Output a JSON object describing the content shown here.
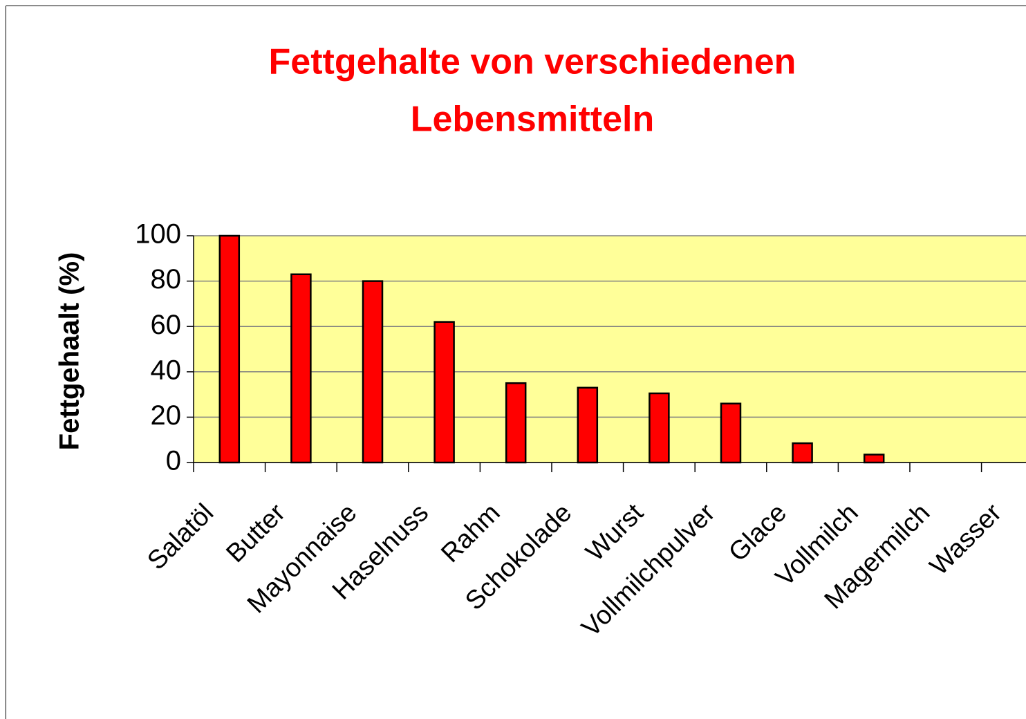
{
  "chart_data": {
    "type": "bar",
    "title": [
      "Fettgehalte von verschiedenen",
      "Lebensmitteln"
    ],
    "y_label": "Fettgehaalt (%)",
    "categories": [
      "Salatöl",
      "Butter",
      "Mayonnaise",
      "Haselnuss",
      "Rahm",
      "Schokolade",
      "Wurst",
      "Vollmilchpulver",
      "Glace",
      "Vollmilch",
      "Magermilch",
      "Wasser"
    ],
    "values": [
      100,
      83,
      80,
      62,
      35,
      33,
      30.5,
      26,
      8.5,
      3.5,
      0,
      0
    ],
    "color": "#ff0000",
    "ylim": [
      0,
      100
    ],
    "yticks": [
      0,
      20,
      40,
      60,
      80,
      100
    ],
    "grid": true
  }
}
